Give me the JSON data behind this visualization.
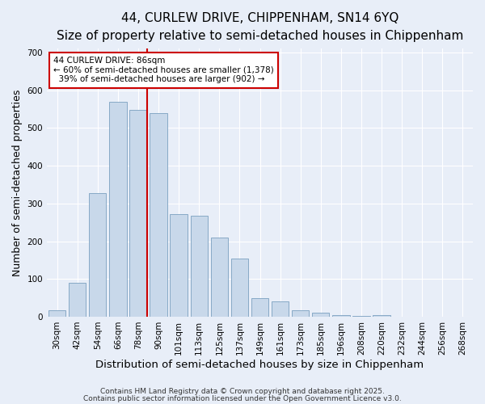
{
  "title_line1": "44, CURLEW DRIVE, CHIPPENHAM, SN14 6YQ",
  "title_line2": "Size of property relative to semi-detached houses in Chippenham",
  "xlabel": "Distribution of semi-detached houses by size in Chippenham",
  "ylabel": "Number of semi-detached properties",
  "categories": [
    "30sqm",
    "42sqm",
    "54sqm",
    "66sqm",
    "78sqm",
    "90sqm",
    "101sqm",
    "113sqm",
    "125sqm",
    "137sqm",
    "149sqm",
    "161sqm",
    "173sqm",
    "185sqm",
    "196sqm",
    "208sqm",
    "220sqm",
    "232sqm",
    "244sqm",
    "256sqm",
    "268sqm"
  ],
  "values": [
    18,
    90,
    328,
    570,
    548,
    540,
    272,
    268,
    210,
    155,
    50,
    40,
    18,
    10,
    5,
    2,
    5,
    0,
    0,
    0,
    0
  ],
  "bar_color": "#c8d8ea",
  "bar_edge_color": "#7aa0c0",
  "vline_x_index": 4.43,
  "vline_color": "#cc0000",
  "annotation_text": "44 CURLEW DRIVE: 86sqm\n← 60% of semi-detached houses are smaller (1,378)\n  39% of semi-detached houses are larger (902) →",
  "annotation_box_color": "#ffffff",
  "annotation_box_edgecolor": "#cc0000",
  "ylim": [
    0,
    710
  ],
  "yticks": [
    0,
    100,
    200,
    300,
    400,
    500,
    600,
    700
  ],
  "background_color": "#e8eef8",
  "plot_bg_color": "#e8eef8",
  "footer_line1": "Contains HM Land Registry data © Crown copyright and database right 2025.",
  "footer_line2": "Contains public sector information licensed under the Open Government Licence v3.0.",
  "title_fontsize": 11,
  "subtitle_fontsize": 10,
  "axis_label_fontsize": 9,
  "tick_fontsize": 7.5,
  "annotation_fontsize": 7.5,
  "footer_fontsize": 6.5
}
